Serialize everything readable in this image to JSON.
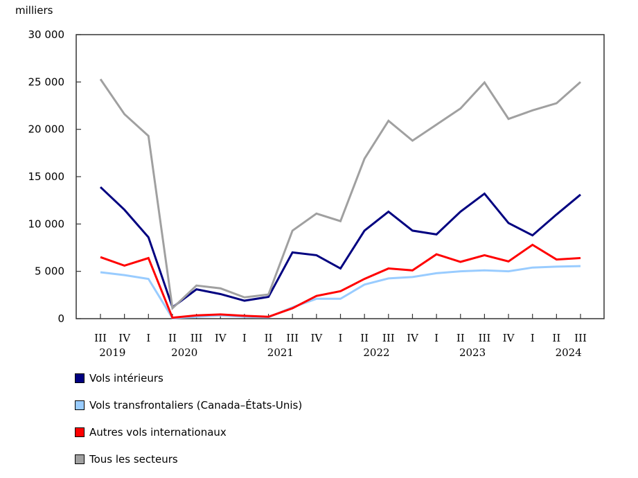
{
  "chart_data": {
    "type": "line",
    "ylabel": "milliers",
    "ylim": [
      0,
      30000
    ],
    "yticks": [
      "0",
      "5 000",
      "10 000",
      "15 000",
      "20 000",
      "25 000",
      "30 000"
    ],
    "ytick_values": [
      0,
      5000,
      10000,
      15000,
      20000,
      25000,
      30000
    ],
    "categories": [
      "III",
      "IV",
      "I",
      "II",
      "III",
      "IV",
      "I",
      "II",
      "III",
      "IV",
      "I",
      "II",
      "III",
      "IV",
      "I",
      "II",
      "III",
      "IV",
      "I",
      "II",
      "III"
    ],
    "years": [
      {
        "label": "2019",
        "after_index": 0
      },
      {
        "label": "2020",
        "after_index": 3
      },
      {
        "label": "2021",
        "after_index": 7
      },
      {
        "label": "2022",
        "after_index": 11
      },
      {
        "label": "2023",
        "after_index": 15
      },
      {
        "label": "2024",
        "after_index": 19
      }
    ],
    "grid": false,
    "legend_placement": "bottom",
    "series": [
      {
        "name": "Vols intérieurs",
        "color": "#000080",
        "values": [
          13900,
          11500,
          8600,
          1200,
          3100,
          2600,
          1900,
          2300,
          7000,
          6700,
          5300,
          9300,
          11300,
          9300,
          8900,
          11300,
          13200,
          10100,
          8800,
          11000,
          13100
        ]
      },
      {
        "name": "Vols transfrontaliers (Canada–États-Unis)",
        "color": "#99ccff",
        "values": [
          4900,
          4600,
          4200,
          50,
          200,
          350,
          200,
          150,
          1200,
          2100,
          2100,
          3600,
          4250,
          4400,
          4800,
          5000,
          5100,
          5000,
          5400,
          5500,
          5550
        ]
      },
      {
        "name": "Autres vols internationaux",
        "color": "#ff0000",
        "values": [
          6500,
          5600,
          6400,
          100,
          350,
          450,
          300,
          200,
          1100,
          2400,
          2900,
          4200,
          5300,
          5100,
          6800,
          6000,
          6700,
          6050,
          7800,
          6250,
          6400
        ]
      },
      {
        "name": "Tous les secteurs",
        "color": "#a0a0a0",
        "values": [
          25300,
          21600,
          19300,
          1100,
          3500,
          3200,
          2250,
          2550,
          9300,
          11100,
          10300,
          16900,
          20900,
          18800,
          20500,
          22200,
          24950,
          21100,
          22000,
          22750,
          25000
        ]
      }
    ]
  }
}
